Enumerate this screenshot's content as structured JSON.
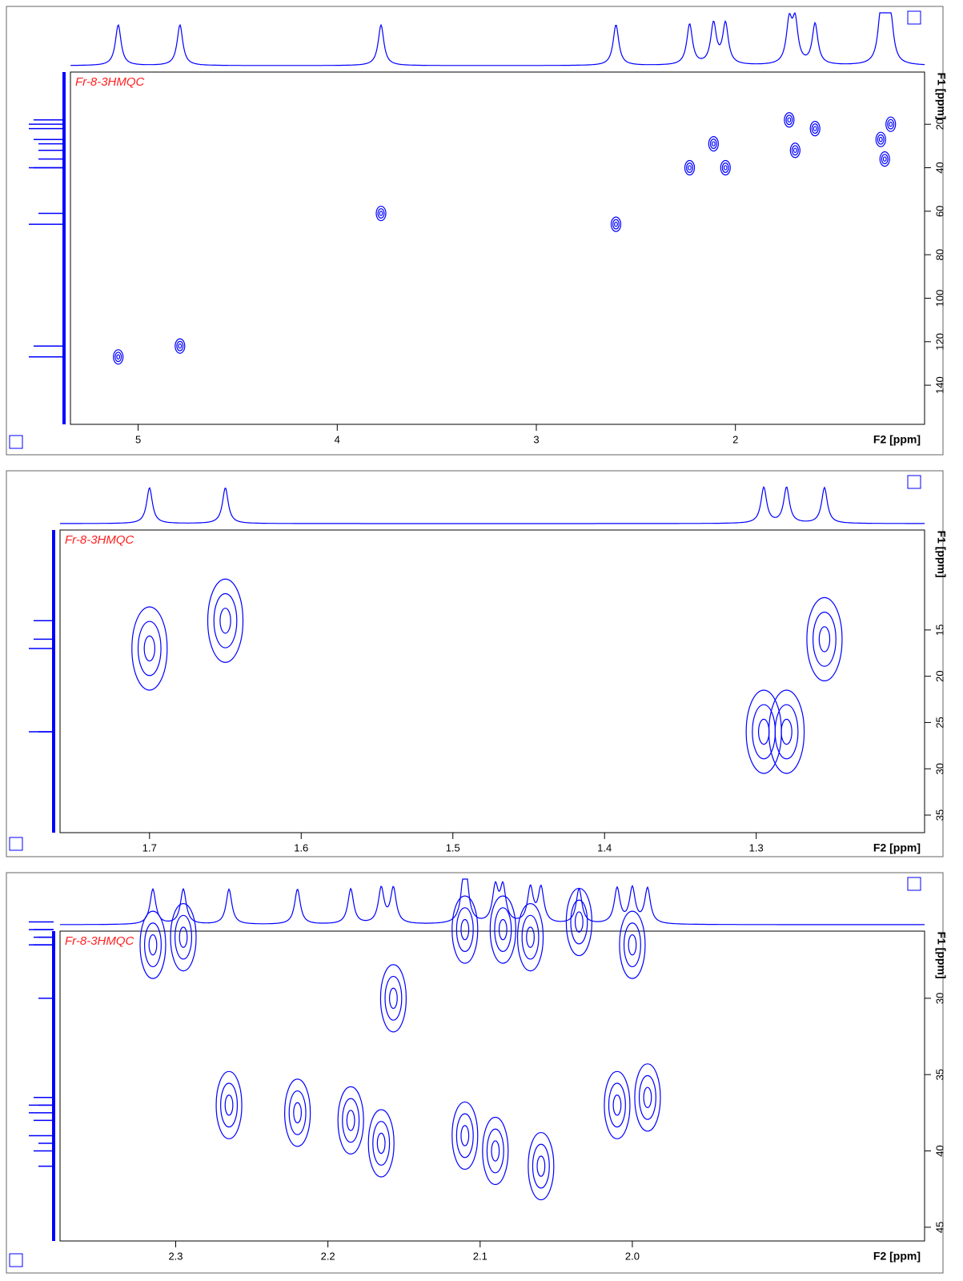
{
  "chart_data": [
    {
      "type": "contour",
      "title": "Fr-8-3HMQC",
      "x_label": "F2 [ppm]",
      "y_label": "F1 [ppm]",
      "color": "#0000ff",
      "xlim": [
        5.34,
        1.05
      ],
      "ylim": [
        -4,
        158
      ],
      "xticks": [
        5,
        4,
        3,
        2
      ],
      "yticks": [
        20,
        40,
        60,
        80,
        100,
        120,
        140
      ],
      "x": [
        5.1,
        4.79,
        3.78,
        2.6,
        2.23,
        2.11,
        2.05,
        1.73,
        1.7,
        1.6,
        1.27,
        1.25,
        1.22
      ],
      "y": [
        127,
        122,
        61,
        66,
        40,
        29,
        40,
        18,
        32,
        22,
        27,
        36,
        20
      ]
    },
    {
      "type": "contour",
      "title": "Fr-8-3HMQC",
      "x_label": "F2 [ppm]",
      "y_label": "F1 [ppm]",
      "color": "#0000ff",
      "xlim": [
        1.759,
        1.189
      ],
      "ylim": [
        4.2,
        36.9
      ],
      "xticks": [
        1.7,
        1.6,
        1.5,
        1.4,
        1.3
      ],
      "yticks": [
        15,
        20,
        25,
        30,
        35
      ],
      "x": [
        1.7,
        1.65,
        1.295,
        1.28,
        1.255
      ],
      "y": [
        17,
        14,
        26,
        26,
        16
      ]
    },
    {
      "type": "contour",
      "title": "Fr-8-3HMQC",
      "x_label": "F2 [ppm]",
      "y_label": "F1 [ppm]",
      "color": "#0000ff",
      "xlim": [
        2.376,
        1.808
      ],
      "ylim": [
        25.6,
        45.9
      ],
      "xticks": [
        2.3,
        2.2,
        2.1,
        {
          "value": 2,
          "label": "2.0"
        }
      ],
      "yticks": [
        30,
        35,
        40,
        45
      ],
      "x": [
        2.315,
        2.295,
        2.157,
        2.11,
        2.085,
        2.067,
        2.035,
        2.0,
        2.265,
        2.22,
        2.185,
        2.165,
        2.11,
        2.09,
        2.06,
        2.01,
        1.99
      ],
      "y": [
        26.5,
        26,
        30,
        25.5,
        25.5,
        26,
        25,
        26.5,
        37,
        37.5,
        38,
        39.5,
        39,
        40,
        41,
        37,
        36.5
      ]
    }
  ]
}
